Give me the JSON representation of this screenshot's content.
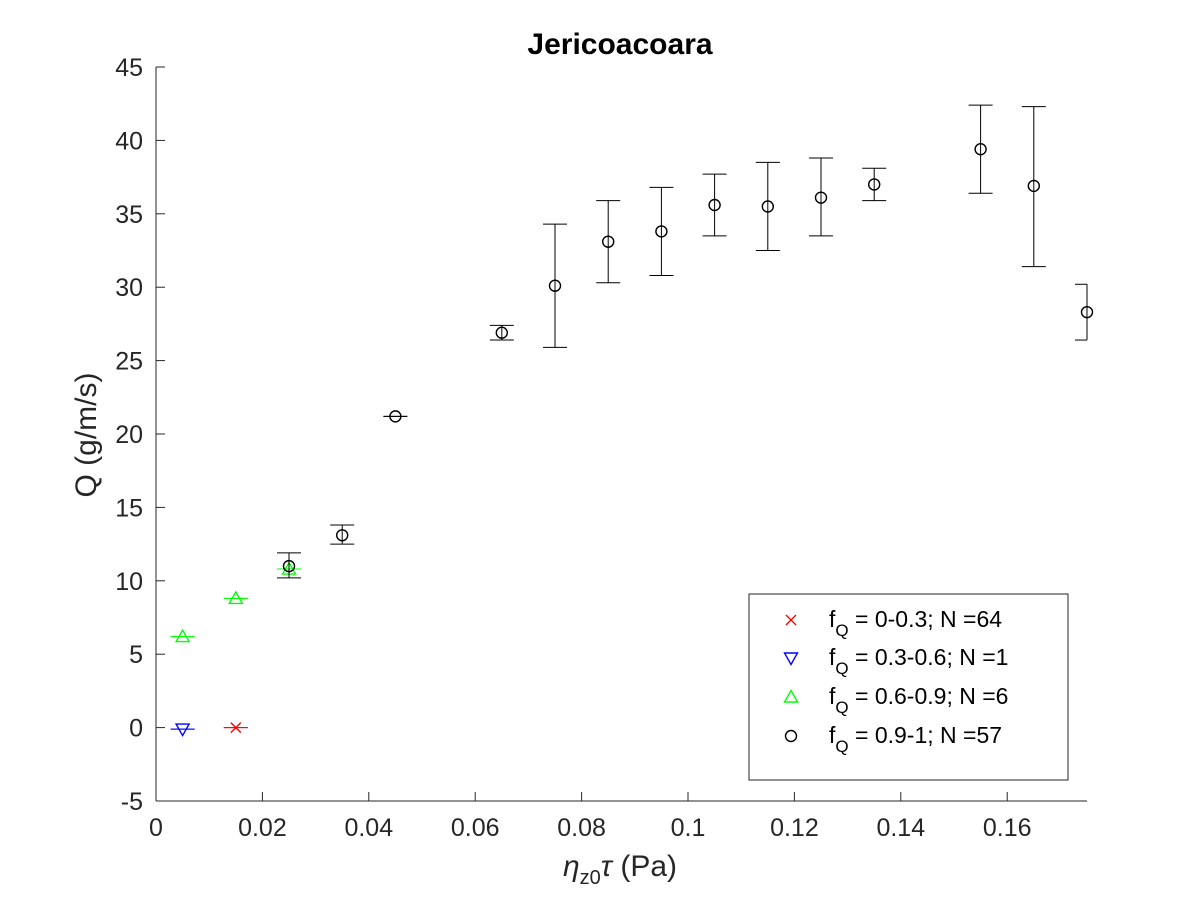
{
  "chart_data": {
    "type": "scatter",
    "title": "Jericoacoara",
    "xlabel": {
      "eta": "η",
      "sub": "z0",
      "tau": "τ",
      "unit": " (Pa)"
    },
    "ylabel": "Q (g/m/s)",
    "xlim": [
      0,
      0.175
    ],
    "ylim": [
      -5,
      45
    ],
    "xticks": [
      0,
      0.02,
      0.04,
      0.06,
      0.08,
      0.1,
      0.12,
      0.14,
      0.16
    ],
    "xtick_labels": [
      "0",
      "0.02",
      "0.04",
      "0.06",
      "0.08",
      "0.1",
      "0.12",
      "0.14",
      "0.16"
    ],
    "yticks": [
      -5,
      0,
      5,
      10,
      15,
      20,
      25,
      30,
      35,
      40,
      45
    ],
    "ytick_labels": [
      "-5",
      "0",
      "5",
      "10",
      "15",
      "20",
      "25",
      "30",
      "35",
      "40",
      "45"
    ],
    "grid": false,
    "legend_position": "bottom-right",
    "series": [
      {
        "name": "f_Q = 0-0.3; N =64",
        "legend": {
          "main": "f",
          "sub": "Q",
          "rest": " = 0-0.3; N =64"
        },
        "marker": "x",
        "color": "#ff0000",
        "points": [
          {
            "x": 0.015,
            "y": 0,
            "err_low": 0,
            "err_high": 0
          }
        ]
      },
      {
        "name": "f_Q = 0.3-0.6; N =1",
        "legend": {
          "main": "f",
          "sub": "Q",
          "rest": " = 0.3-0.6; N =1"
        },
        "marker": "triangle-down",
        "color": "#0000ff",
        "points": [
          {
            "x": 0.005,
            "y": -0.1,
            "err_low": 0,
            "err_high": 0
          }
        ]
      },
      {
        "name": "f_Q = 0.6-0.9; N =6",
        "legend": {
          "main": "f",
          "sub": "Q",
          "rest": " = 0.6-0.9; N =6"
        },
        "marker": "triangle-up",
        "color": "#00ff00",
        "points": [
          {
            "x": 0.005,
            "y": 6.2,
            "err_low": 0,
            "err_high": 0
          },
          {
            "x": 0.015,
            "y": 8.8,
            "err_low": 0,
            "err_high": 0
          },
          {
            "x": 0.025,
            "y": 10.8,
            "err_low": 0,
            "err_high": 0
          }
        ]
      },
      {
        "name": "f_Q = 0.9-1; N =57",
        "legend": {
          "main": "f",
          "sub": "Q",
          "rest": " = 0.9-1; N =57"
        },
        "marker": "circle",
        "color": "#000000",
        "points": [
          {
            "x": 0.025,
            "y": 11.0,
            "err_low": 0.8,
            "err_high": 0.9
          },
          {
            "x": 0.035,
            "y": 13.1,
            "err_low": 0.6,
            "err_high": 0.7
          },
          {
            "x": 0.045,
            "y": 21.2,
            "err_low": 0,
            "err_high": 0
          },
          {
            "x": 0.065,
            "y": 26.9,
            "err_low": 0.5,
            "err_high": 0.5
          },
          {
            "x": 0.075,
            "y": 30.1,
            "err_low": 4.2,
            "err_high": 4.2
          },
          {
            "x": 0.085,
            "y": 33.1,
            "err_low": 2.8,
            "err_high": 2.8
          },
          {
            "x": 0.095,
            "y": 33.8,
            "err_low": 3.0,
            "err_high": 3.0
          },
          {
            "x": 0.105,
            "y": 35.6,
            "err_low": 2.1,
            "err_high": 2.1
          },
          {
            "x": 0.115,
            "y": 35.5,
            "err_low": 3.0,
            "err_high": 3.0
          },
          {
            "x": 0.125,
            "y": 36.1,
            "err_low": 2.6,
            "err_high": 2.7
          },
          {
            "x": 0.135,
            "y": 37.0,
            "err_low": 1.1,
            "err_high": 1.1
          },
          {
            "x": 0.155,
            "y": 39.4,
            "err_low": 3.0,
            "err_high": 3.0
          },
          {
            "x": 0.165,
            "y": 36.9,
            "err_low": 5.5,
            "err_high": 5.4
          },
          {
            "x": 0.175,
            "y": 28.3,
            "err_low": 1.9,
            "err_high": 1.9
          }
        ]
      }
    ]
  }
}
